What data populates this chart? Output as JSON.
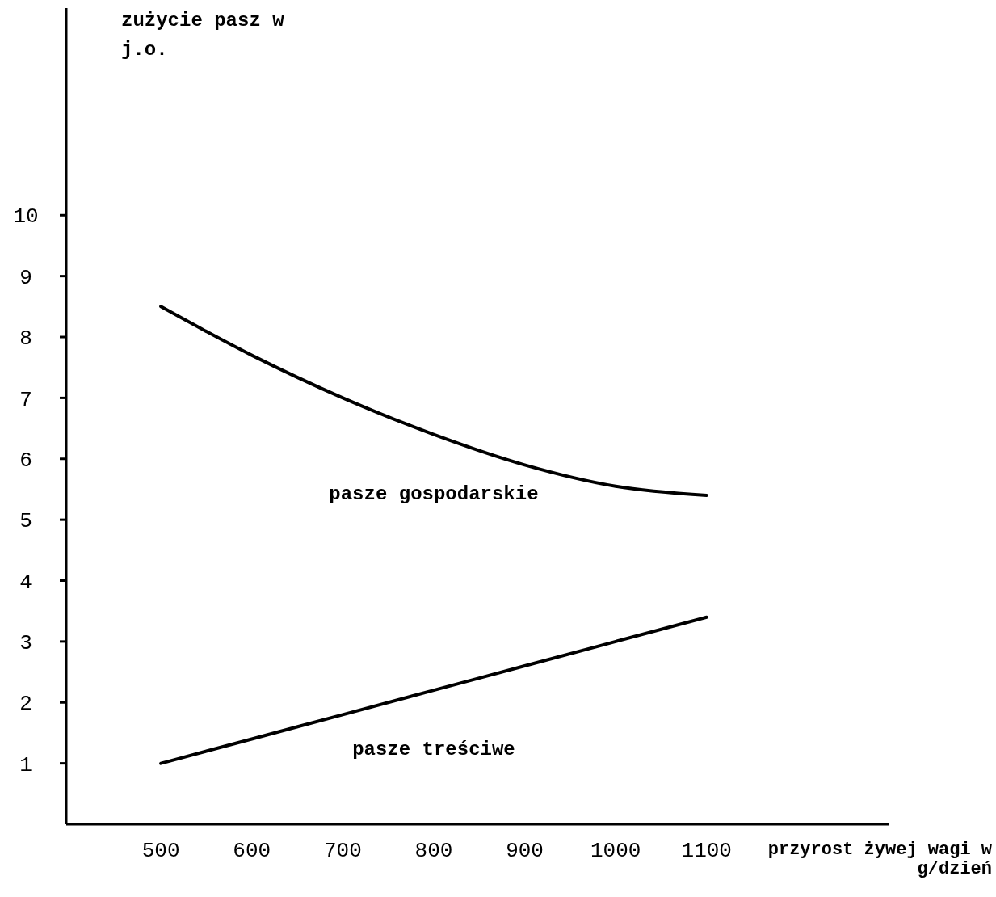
{
  "chart_data": {
    "type": "line",
    "xlabel": "przyrost żywej wagi w g/dzień",
    "ylabel": "zużycie pasz w j.o.",
    "x": [
      500,
      600,
      700,
      800,
      900,
      1000,
      1100
    ],
    "series": [
      {
        "name": "pasze gospodarskie",
        "color": "#000000",
        "values": [
          8.5,
          7.7,
          7.0,
          6.4,
          5.9,
          5.55,
          5.4
        ]
      },
      {
        "name": "pasze treściwe",
        "color": "#000000",
        "values": [
          1.0,
          1.4,
          1.8,
          2.2,
          2.6,
          3.0,
          3.4
        ]
      }
    ],
    "xlim": [
      396,
      1300
    ],
    "xticks": [
      500,
      600,
      700,
      800,
      900,
      1000,
      1100
    ],
    "ylim": [
      0,
      13.4
    ],
    "yticks": [
      1,
      2,
      3,
      4,
      5,
      6,
      7,
      8,
      9,
      10
    ],
    "grid": false,
    "legend": false,
    "marker": "none",
    "line_style": "solid"
  }
}
